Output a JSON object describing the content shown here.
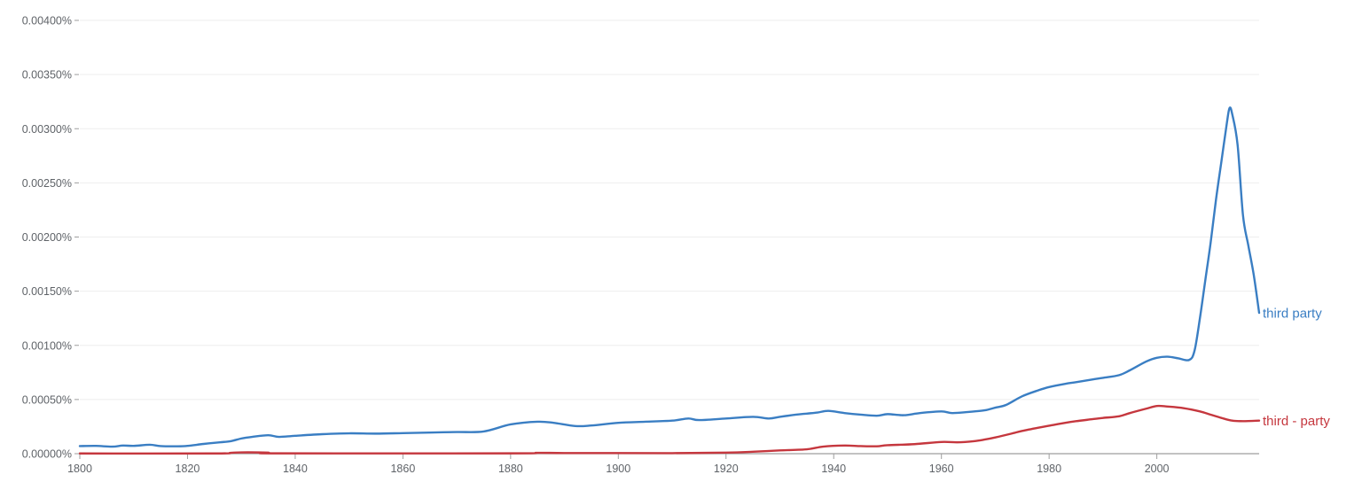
{
  "chart_data": {
    "type": "line",
    "title": "",
    "xlabel": "",
    "ylabel": "",
    "xlim": [
      1800,
      2019
    ],
    "ylim": [
      0,
      0.004
    ],
    "grid": true,
    "legend": "inline-right-end",
    "x_ticks": [
      1800,
      1820,
      1840,
      1860,
      1880,
      1900,
      1920,
      1940,
      1960,
      1980,
      2000
    ],
    "x_tick_labels": [
      "1800",
      "1820",
      "1840",
      "1860",
      "1880",
      "1900",
      "1920",
      "1940",
      "1960",
      "1980",
      "2000"
    ],
    "y_ticks": [
      0,
      0.0005,
      0.001,
      0.0015,
      0.002,
      0.0025,
      0.003,
      0.0035,
      0.004
    ],
    "y_tick_labels": [
      "0.00000%",
      "0.00050%",
      "0.00100%",
      "0.00150%",
      "0.00200%",
      "0.00250%",
      "0.00300%",
      "0.00350%",
      "0.00400%"
    ],
    "series": [
      {
        "name": "third party",
        "color": "#3a7ec3",
        "points": [
          [
            1800,
            7e-05
          ],
          [
            1803,
            7.2e-05
          ],
          [
            1806,
            6.5e-05
          ],
          [
            1808,
            7.5e-05
          ],
          [
            1810,
            7.2e-05
          ],
          [
            1813,
            8.2e-05
          ],
          [
            1815,
            7e-05
          ],
          [
            1818,
            6.8e-05
          ],
          [
            1820,
            7.2e-05
          ],
          [
            1823,
            9e-05
          ],
          [
            1826,
            0.000105
          ],
          [
            1828,
            0.000115
          ],
          [
            1830,
            0.00014
          ],
          [
            1832,
            0.000155
          ],
          [
            1835,
            0.00017
          ],
          [
            1837,
            0.000155
          ],
          [
            1840,
            0.000165
          ],
          [
            1845,
            0.00018
          ],
          [
            1850,
            0.000188
          ],
          [
            1855,
            0.000185
          ],
          [
            1860,
            0.00019
          ],
          [
            1865,
            0.000195
          ],
          [
            1870,
            0.0002
          ],
          [
            1875,
            0.000205
          ],
          [
            1880,
            0.00027
          ],
          [
            1885,
            0.000295
          ],
          [
            1888,
            0.000285
          ],
          [
            1892,
            0.000255
          ],
          [
            1895,
            0.00026
          ],
          [
            1900,
            0.000285
          ],
          [
            1905,
            0.000295
          ],
          [
            1910,
            0.000305
          ],
          [
            1913,
            0.000325
          ],
          [
            1915,
            0.00031
          ],
          [
            1920,
            0.000325
          ],
          [
            1925,
            0.00034
          ],
          [
            1928,
            0.000325
          ],
          [
            1930,
            0.00034
          ],
          [
            1933,
            0.00036
          ],
          [
            1935,
            0.00037
          ],
          [
            1937,
            0.00038
          ],
          [
            1939,
            0.000395
          ],
          [
            1942,
            0.000375
          ],
          [
            1945,
            0.00036
          ],
          [
            1948,
            0.00035
          ],
          [
            1950,
            0.000365
          ],
          [
            1953,
            0.000355
          ],
          [
            1956,
            0.000375
          ],
          [
            1960,
            0.00039
          ],
          [
            1962,
            0.000375
          ],
          [
            1965,
            0.000385
          ],
          [
            1968,
            0.0004
          ],
          [
            1970,
            0.000425
          ],
          [
            1972,
            0.00045
          ],
          [
            1975,
            0.00053
          ],
          [
            1978,
            0.000585
          ],
          [
            1980,
            0.000615
          ],
          [
            1983,
            0.000645
          ],
          [
            1985,
            0.00066
          ],
          [
            1988,
            0.000685
          ],
          [
            1990,
            0.0007
          ],
          [
            1993,
            0.000725
          ],
          [
            1995,
            0.00077
          ],
          [
            1998,
            0.00085
          ],
          [
            2000,
            0.000885
          ],
          [
            2002,
            0.000895
          ],
          [
            2004,
            0.00088
          ],
          [
            2006,
            0.000865
          ],
          [
            2007,
            0.00095
          ],
          [
            2008,
            0.00125
          ],
          [
            2009,
            0.0016
          ],
          [
            2010,
            0.00195
          ],
          [
            2011,
            0.00235
          ],
          [
            2012,
            0.0027
          ],
          [
            2013,
            0.00305
          ],
          [
            2013.5,
            0.00319
          ],
          [
            2014,
            0.003135
          ],
          [
            2015,
            0.00285
          ],
          [
            2016,
            0.0022
          ],
          [
            2017,
            0.00192
          ],
          [
            2018,
            0.00165
          ],
          [
            2019,
            0.0013
          ]
        ]
      },
      {
        "name": "third - party",
        "color": "#c5373e",
        "points": [
          [
            1800,
            2e-06
          ],
          [
            1825,
            2e-06
          ],
          [
            1828,
            8e-06
          ],
          [
            1830,
            1.2e-05
          ],
          [
            1835,
            1e-05
          ],
          [
            1837,
            3e-06
          ],
          [
            1880,
            3e-06
          ],
          [
            1885,
            8e-06
          ],
          [
            1890,
            6e-06
          ],
          [
            1900,
            6e-06
          ],
          [
            1910,
            5e-06
          ],
          [
            1920,
            1e-05
          ],
          [
            1925,
            1.8e-05
          ],
          [
            1930,
            3e-05
          ],
          [
            1935,
            4e-05
          ],
          [
            1938,
            6.5e-05
          ],
          [
            1942,
            7.5e-05
          ],
          [
            1945,
            7e-05
          ],
          [
            1948,
            6.8e-05
          ],
          [
            1950,
            7.8e-05
          ],
          [
            1955,
            8.8e-05
          ],
          [
            1960,
            0.000108
          ],
          [
            1963,
            0.000105
          ],
          [
            1966,
            0.000115
          ],
          [
            1968,
            0.00013
          ],
          [
            1970,
            0.00015
          ],
          [
            1973,
            0.000185
          ],
          [
            1975,
            0.00021
          ],
          [
            1978,
            0.00024
          ],
          [
            1980,
            0.000258
          ],
          [
            1983,
            0.000285
          ],
          [
            1985,
            0.0003
          ],
          [
            1988,
            0.000318
          ],
          [
            1990,
            0.00033
          ],
          [
            1993,
            0.000345
          ],
          [
            1995,
            0.000375
          ],
          [
            1998,
            0.000415
          ],
          [
            2000,
            0.00044
          ],
          [
            2002,
            0.000435
          ],
          [
            2005,
            0.00042
          ],
          [
            2008,
            0.00039
          ],
          [
            2010,
            0.00036
          ],
          [
            2012,
            0.00033
          ],
          [
            2014,
            0.000305
          ],
          [
            2016,
            0.0003
          ],
          [
            2019,
            0.000305
          ]
        ]
      }
    ]
  }
}
